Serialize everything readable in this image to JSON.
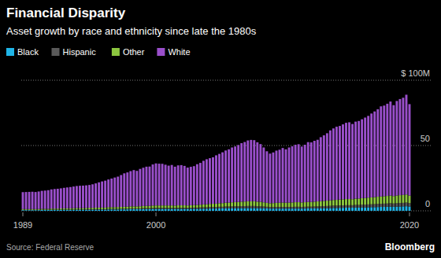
{
  "chart_data": {
    "type": "bar",
    "title": "Financial Disparity",
    "subtitle": "Asset growth by race and ethnicity since late the 1980s",
    "source": "Source: Federal Reserve",
    "credit": "Bloomberg",
    "stacked": true,
    "grid": true,
    "legend": "top",
    "ylim": [
      0,
      100
    ],
    "yticks": [
      0,
      50,
      {
        "value": 100,
        "label": "$ 100M"
      }
    ],
    "categories": [
      "1989",
      null,
      null,
      null,
      null,
      null,
      null,
      null,
      null,
      null,
      null,
      null,
      null,
      null,
      null,
      null,
      null,
      null,
      null,
      null,
      null,
      null,
      null,
      null,
      null,
      null,
      null,
      null,
      null,
      null,
      null,
      null,
      null,
      null,
      null,
      null,
      null,
      null,
      null,
      null,
      null,
      null,
      "2000",
      null,
      null,
      null,
      null,
      null,
      null,
      null,
      null,
      null,
      null,
      null,
      null,
      null,
      null,
      null,
      null,
      null,
      null,
      null,
      null,
      null,
      null,
      null,
      null,
      null,
      null,
      null,
      null,
      null,
      null,
      null,
      null,
      null,
      null,
      null,
      null,
      null,
      null,
      null,
      null,
      null,
      null,
      null,
      null,
      null,
      null,
      null,
      null,
      null,
      null,
      null,
      null,
      null,
      null,
      null,
      null,
      null,
      null,
      null,
      null,
      null,
      null,
      null,
      null,
      null,
      null,
      null,
      null,
      null,
      null,
      null,
      null,
      null,
      null,
      null,
      null,
      null,
      null,
      null,
      "2020"
    ],
    "series": [
      {
        "name": "Black",
        "color": "#1fb5e8",
        "values": [
          0.5,
          0.5,
          0.5,
          0.5,
          0.5,
          0.5,
          0.6,
          0.6,
          0.6,
          0.6,
          0.6,
          0.6,
          0.7,
          0.7,
          0.7,
          0.7,
          0.7,
          0.8,
          0.8,
          0.8,
          0.8,
          0.8,
          0.8,
          0.9,
          0.9,
          0.9,
          0.9,
          1.0,
          1.0,
          1.0,
          1.0,
          1.1,
          1.1,
          1.1,
          1.2,
          1.2,
          1.2,
          1.2,
          1.3,
          1.3,
          1.3,
          1.4,
          1.4,
          1.4,
          1.4,
          1.4,
          1.4,
          1.4,
          1.4,
          1.4,
          1.4,
          1.4,
          1.4,
          1.5,
          1.5,
          1.5,
          1.6,
          1.6,
          1.6,
          1.7,
          1.7,
          1.7,
          1.8,
          1.8,
          1.9,
          1.9,
          1.9,
          2.0,
          2.0,
          2.0,
          2.0,
          2.1,
          2.1,
          2.1,
          2.0,
          2.0,
          1.9,
          1.8,
          1.7,
          1.7,
          1.7,
          1.7,
          1.7,
          1.7,
          1.7,
          1.7,
          1.7,
          1.7,
          1.7,
          1.7,
          1.8,
          1.8,
          1.8,
          1.9,
          1.9,
          2.0,
          2.0,
          2.1,
          2.2,
          2.2,
          2.3,
          2.3,
          2.4,
          2.4,
          2.4,
          2.5,
          2.5,
          2.6,
          2.6,
          2.7,
          2.8,
          2.8,
          2.9,
          3.0,
          3.0,
          3.1,
          3.2,
          3.1,
          3.2,
          3.3,
          3.4,
          3.5,
          3.3
        ]
      },
      {
        "name": "Hispanic",
        "color": "#5a5a5a",
        "values": [
          0.2,
          0.2,
          0.2,
          0.2,
          0.2,
          0.2,
          0.2,
          0.2,
          0.2,
          0.3,
          0.3,
          0.3,
          0.3,
          0.3,
          0.3,
          0.3,
          0.3,
          0.3,
          0.3,
          0.3,
          0.4,
          0.4,
          0.4,
          0.4,
          0.4,
          0.4,
          0.4,
          0.5,
          0.5,
          0.5,
          0.5,
          0.5,
          0.5,
          0.6,
          0.6,
          0.6,
          0.6,
          0.6,
          0.7,
          0.7,
          0.7,
          0.7,
          0.8,
          0.8,
          0.8,
          0.8,
          0.8,
          0.8,
          0.8,
          0.9,
          0.9,
          0.9,
          0.9,
          0.9,
          1.0,
          1.0,
          1.0,
          1.1,
          1.1,
          1.2,
          1.2,
          1.2,
          1.3,
          1.3,
          1.4,
          1.4,
          1.5,
          1.5,
          1.5,
          1.6,
          1.6,
          1.6,
          1.6,
          1.6,
          1.5,
          1.5,
          1.4,
          1.3,
          1.2,
          1.2,
          1.3,
          1.3,
          1.3,
          1.3,
          1.3,
          1.3,
          1.4,
          1.4,
          1.3,
          1.4,
          1.4,
          1.4,
          1.5,
          1.5,
          1.6,
          1.6,
          1.7,
          1.7,
          1.8,
          1.8,
          1.8,
          1.9,
          1.9,
          1.9,
          1.9,
          2.0,
          2.0,
          2.1,
          2.1,
          2.2,
          2.2,
          2.3,
          2.4,
          2.4,
          2.5,
          2.5,
          2.6,
          2.5,
          2.6,
          2.7,
          2.7,
          2.8,
          2.6
        ]
      },
      {
        "name": "Other",
        "color": "#8cc63f",
        "values": [
          0.6,
          0.6,
          0.6,
          0.6,
          0.6,
          0.7,
          0.7,
          0.7,
          0.7,
          0.8,
          0.8,
          0.8,
          0.8,
          0.9,
          0.9,
          0.9,
          1.0,
          1.0,
          1.0,
          1.0,
          1.0,
          1.1,
          1.1,
          1.1,
          1.2,
          1.2,
          1.2,
          1.3,
          1.3,
          1.3,
          1.4,
          1.4,
          1.5,
          1.5,
          1.6,
          1.6,
          1.6,
          1.7,
          1.7,
          1.8,
          1.8,
          1.9,
          1.9,
          1.9,
          1.9,
          1.9,
          1.9,
          1.9,
          1.8,
          1.9,
          1.9,
          1.9,
          1.8,
          1.9,
          1.9,
          2.0,
          2.1,
          2.2,
          2.3,
          2.4,
          2.5,
          2.6,
          2.7,
          2.8,
          2.9,
          3.0,
          3.1,
          3.2,
          3.3,
          3.4,
          3.5,
          3.6,
          3.6,
          3.6,
          3.5,
          3.4,
          3.2,
          3.0,
          2.9,
          3.0,
          3.1,
          3.2,
          3.3,
          3.2,
          3.3,
          3.4,
          3.5,
          3.5,
          3.4,
          3.5,
          3.6,
          3.6,
          3.7,
          3.8,
          3.9,
          4.0,
          4.1,
          4.2,
          4.3,
          4.4,
          4.5,
          4.6,
          4.7,
          4.7,
          4.6,
          4.8,
          4.9,
          5.0,
          5.1,
          5.2,
          5.3,
          5.4,
          5.5,
          5.6,
          5.7,
          5.8,
          5.9,
          5.7,
          5.9,
          6.0,
          6.1,
          6.2,
          5.8
        ]
      },
      {
        "name": "White",
        "color": "#9a4fcb",
        "values": [
          13.0,
          13.1,
          13.2,
          13.3,
          13.1,
          13.4,
          13.8,
          14.0,
          14.3,
          14.7,
          15.0,
          15.2,
          15.4,
          15.7,
          16.0,
          16.3,
          16.6,
          16.9,
          17.1,
          17.2,
          17.3,
          17.5,
          18.0,
          18.6,
          19.3,
          20.0,
          20.6,
          21.2,
          21.9,
          22.7,
          23.3,
          24.4,
          25.6,
          26.2,
          27.0,
          27.8,
          27.2,
          28.6,
          29.3,
          30.0,
          30.1,
          31.5,
          32.2,
          32.0,
          31.9,
          31.2,
          30.5,
          31.0,
          29.8,
          30.6,
          30.8,
          30.2,
          29.0,
          29.4,
          29.8,
          31.2,
          32.0,
          33.4,
          34.5,
          35.0,
          35.6,
          37.0,
          37.8,
          38.9,
          40.0,
          40.8,
          42.0,
          42.6,
          43.6,
          44.8,
          45.6,
          46.6,
          47.0,
          46.8,
          45.5,
          44.2,
          42.0,
          39.5,
          38.0,
          38.8,
          40.0,
          40.6,
          41.8,
          40.9,
          42.2,
          43.0,
          44.0,
          44.4,
          42.8,
          44.0,
          45.8,
          45.6,
          46.6,
          47.2,
          49.0,
          50.2,
          51.6,
          53.6,
          54.8,
          56.0,
          56.4,
          57.4,
          58.4,
          58.8,
          57.6,
          59.0,
          59.4,
          60.4,
          61.6,
          62.6,
          64.2,
          65.6,
          67.0,
          69.0,
          69.4,
          70.6,
          72.0,
          69.6,
          72.4,
          73.6,
          74.4,
          76.4,
          70.0
        ]
      }
    ]
  }
}
